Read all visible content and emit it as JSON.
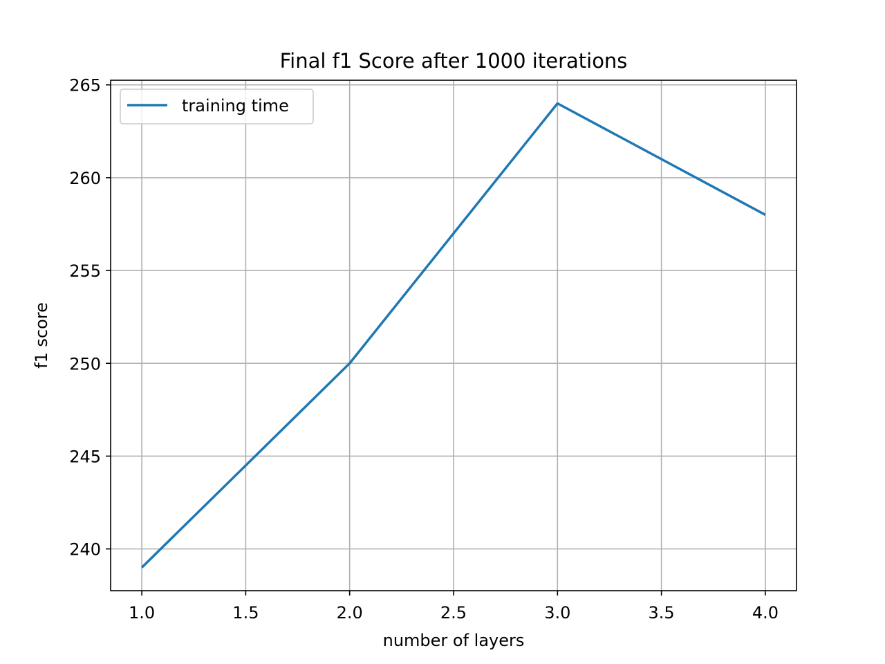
{
  "chart_data": {
    "type": "line",
    "title": "Final f1 Score after 1000 iterations",
    "xlabel": "number of layers",
    "ylabel": "f1 score",
    "xlim": [
      0.85,
      4.15
    ],
    "ylim": [
      237.75,
      265.25
    ],
    "x_ticks": [
      1.0,
      1.5,
      2.0,
      2.5,
      3.0,
      3.5,
      4.0
    ],
    "x_tick_labels": [
      "1.0",
      "1.5",
      "2.0",
      "2.5",
      "3.0",
      "3.5",
      "4.0"
    ],
    "y_ticks": [
      240,
      245,
      250,
      255,
      260,
      265
    ],
    "y_tick_labels": [
      "240",
      "245",
      "250",
      "255",
      "260",
      "265"
    ],
    "grid": true,
    "legend_position": "upper-left",
    "series": [
      {
        "name": "training time",
        "color": "#1f77b4",
        "x": [
          1.0,
          2.0,
          3.0,
          4.0
        ],
        "y": [
          239,
          250,
          264,
          258
        ]
      }
    ]
  }
}
